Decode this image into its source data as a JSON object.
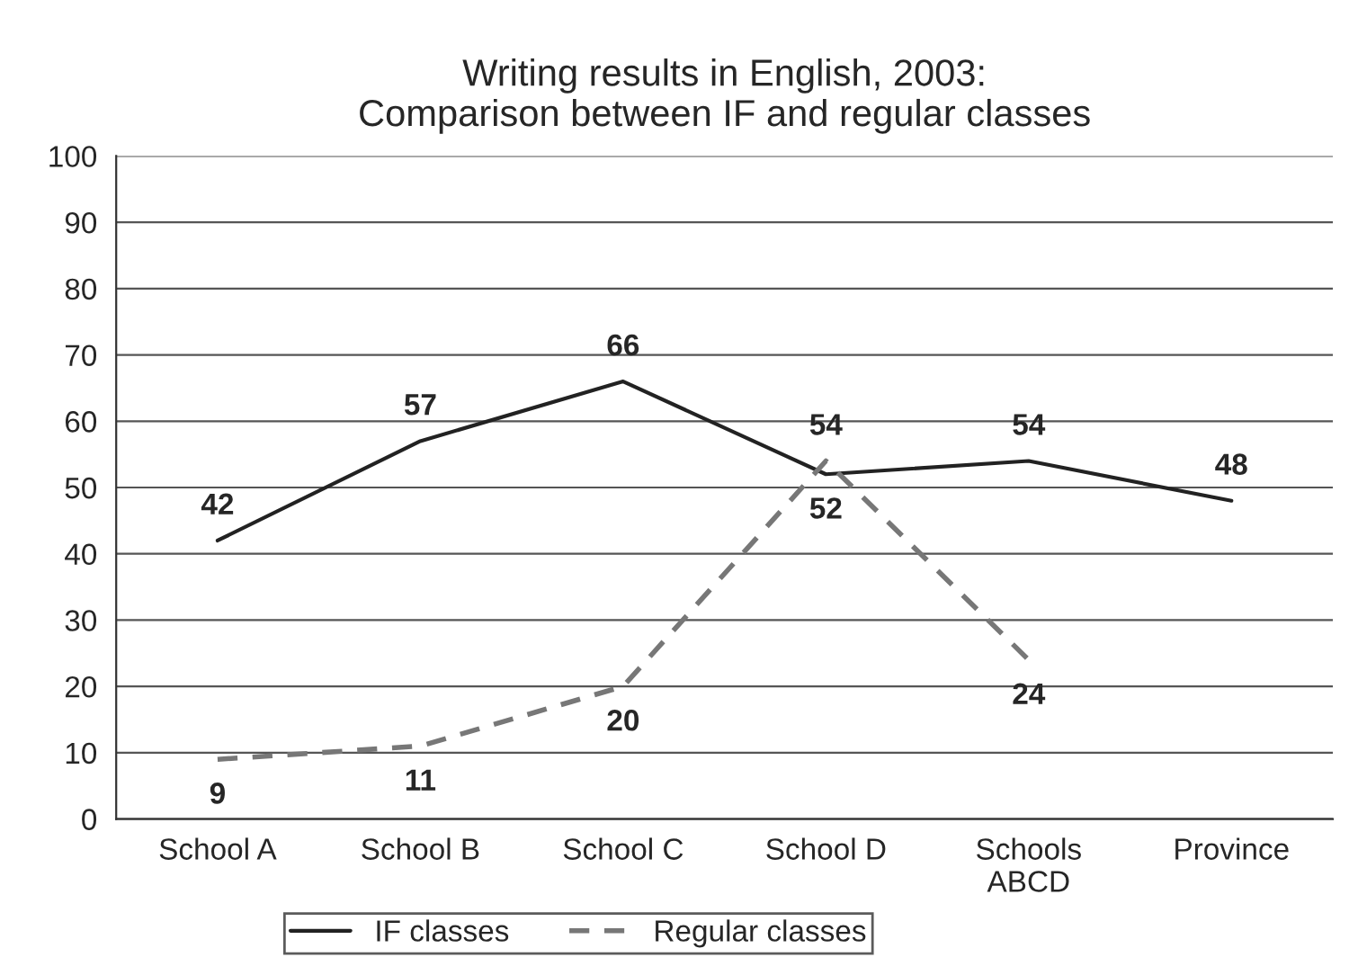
{
  "chart_data": {
    "type": "line",
    "title": "Writing results in English, 2003:\nComparison between IF and regular classes",
    "categories": [
      "School A",
      "School B",
      "School C",
      "School D",
      "Schools\nABCD",
      "Province"
    ],
    "series": [
      {
        "name": "IF classes",
        "color": "#222222",
        "line_style": "solid",
        "values": [
          42,
          57,
          66,
          52,
          54,
          48
        ]
      },
      {
        "name": "Regular classes",
        "color": "#777777",
        "line_style": "dashed",
        "values": [
          9,
          11,
          20,
          54,
          24,
          null
        ]
      }
    ],
    "ylim": [
      0,
      100
    ],
    "yticks": [
      0,
      10,
      20,
      30,
      40,
      50,
      60,
      70,
      80,
      90,
      100
    ],
    "grid": "y",
    "legend": "bottom",
    "data_labels": true,
    "marker": "none"
  }
}
